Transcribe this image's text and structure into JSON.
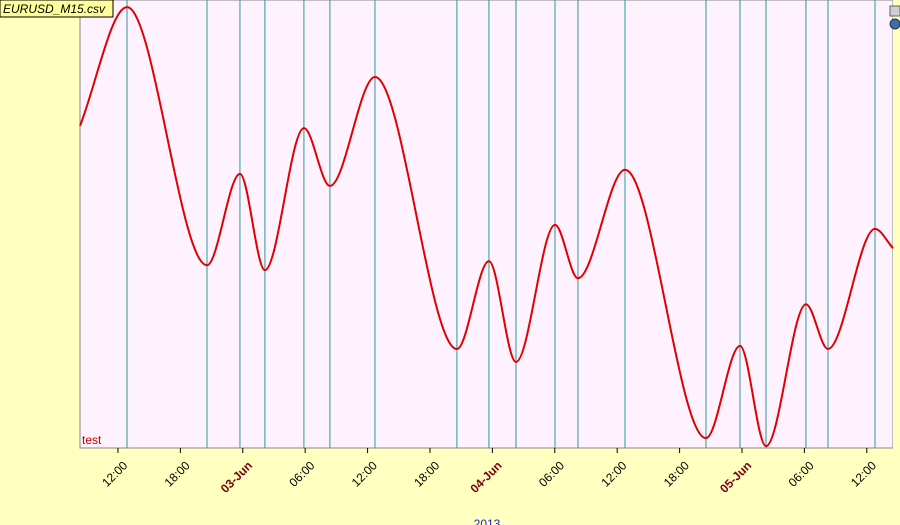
{
  "chart_data": {
    "type": "line",
    "title": "EURUSD_M15.csv",
    "x_label": "2013",
    "annotation": "test",
    "x": [
      8.35,
      12.87,
      20.56,
      23.73,
      26.13,
      29.88,
      32.38,
      36.71,
      44.59,
      47.67,
      50.27,
      54.02,
      56.23,
      60.75,
      68.54,
      71.81,
      74.31,
      78.15,
      80.27,
      84.79,
      86.52
    ],
    "values": [
      71.9,
      98.4,
      40.8,
      61.2,
      39.7,
      71.4,
      58.5,
      82.8,
      22.1,
      41.7,
      19.2,
      49.8,
      37.9,
      62.1,
      2.2,
      22.8,
      0.4,
      32.1,
      22.1,
      48.9,
      44.6
    ],
    "color": "#e00000",
    "extrema_line_color": "#2a9a9a",
    "xlim": [
      8.35,
      86.52
    ],
    "ylim": [
      0,
      100
    ],
    "xticks": [
      {
        "value": 12,
        "label": "12:00"
      },
      {
        "value": 18,
        "label": "18:00"
      },
      {
        "value": 24,
        "label": "03-Jun"
      },
      {
        "value": 30,
        "label": "06:00"
      },
      {
        "value": 36,
        "label": "12:00"
      },
      {
        "value": 42,
        "label": "18:00"
      },
      {
        "value": 48,
        "label": "04-Jun"
      },
      {
        "value": 54,
        "label": "06:00"
      },
      {
        "value": 60,
        "label": "12:00"
      },
      {
        "value": 66,
        "label": "18:00"
      },
      {
        "value": 72,
        "label": "05-Jun"
      },
      {
        "value": 78,
        "label": "06:00"
      },
      {
        "value": 84,
        "label": "12:00"
      }
    ],
    "grid": false
  }
}
